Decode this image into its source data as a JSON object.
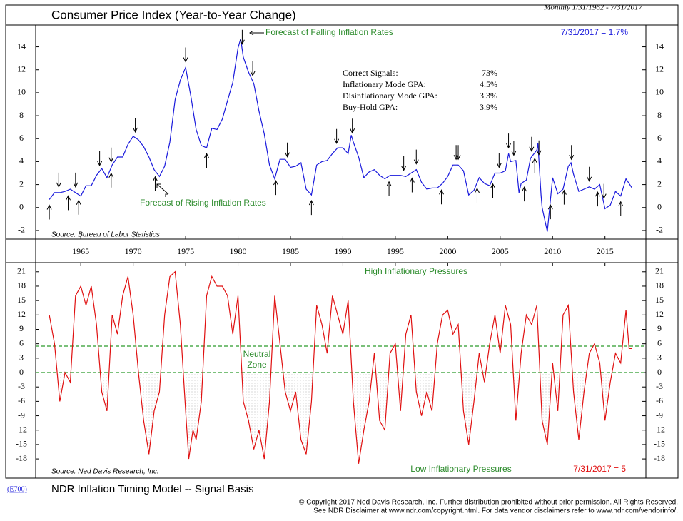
{
  "chart_data": [
    {
      "type": "line",
      "title": "Consumer Price Index (Year-to-Year Change)",
      "subtitle": "Monthly 1/31/1962 - 7/31/2017",
      "latest_label": "7/31/2017 = 1.7%",
      "source": "Source: Bureau of Labor Statistics",
      "annotations": [
        "Forecast of Falling Inflation Rates",
        "Forecast of Rising Inflation Rates"
      ],
      "stats": [
        {
          "label": "Correct Signals:",
          "value": "73%"
        },
        {
          "label": "Inflationary Mode GPA:",
          "value": "4.5%"
        },
        {
          "label": "Disinflationary Mode GPA:",
          "value": "3.3%"
        },
        {
          "label": "Buy-Hold GPA:",
          "value": "3.9%"
        }
      ],
      "color": "#1a1adc",
      "x": [
        1962,
        1962.5,
        1963,
        1963.5,
        1964,
        1964.5,
        1965,
        1965.5,
        1966,
        1966.5,
        1967,
        1967.5,
        1968,
        1968.5,
        1969,
        1969.5,
        1970,
        1970.5,
        1971,
        1971.5,
        1972,
        1972.5,
        1973,
        1973.5,
        1974,
        1974.5,
        1975,
        1975.5,
        1976,
        1976.5,
        1977,
        1977.5,
        1978,
        1978.5,
        1979,
        1979.5,
        1980,
        1980.25,
        1980.5,
        1981,
        1981.5,
        1982,
        1982.5,
        1983,
        1983.5,
        1984,
        1984.5,
        1985,
        1985.5,
        1986,
        1986.5,
        1987,
        1987.5,
        1988,
        1988.5,
        1989,
        1989.5,
        1990,
        1990.5,
        1990.8,
        1991,
        1991.5,
        1992,
        1992.5,
        1993,
        1993.5,
        1994,
        1994.5,
        1995,
        1995.5,
        1996,
        1996.5,
        1997,
        1997.5,
        1998,
        1998.5,
        1999,
        1999.5,
        2000,
        2000.5,
        2001,
        2001.5,
        2002,
        2002.5,
        2003,
        2003.5,
        2004,
        2004.5,
        2005,
        2005.5,
        2005.8,
        2006,
        2006.5,
        2006.8,
        2007,
        2007.5,
        2007.9,
        2008.5,
        2008.6,
        2008.9,
        2009,
        2009.5,
        2010,
        2010.5,
        2011,
        2011.5,
        2011.75,
        2012,
        2012.5,
        2013,
        2013.5,
        2014,
        2014.5,
        2015,
        2015.5,
        2016,
        2016.5,
        2017,
        2017.58
      ],
      "values": [
        0.7,
        1.3,
        1.3,
        1.4,
        1.6,
        1.3,
        1.0,
        1.9,
        1.9,
        2.8,
        3.4,
        2.6,
        3.7,
        4.4,
        4.4,
        5.5,
        6.2,
        5.9,
        5.3,
        4.4,
        3.3,
        2.7,
        3.6,
        5.7,
        9.4,
        11.1,
        12.2,
        9.7,
        6.8,
        5.4,
        5.2,
        6.9,
        6.8,
        7.7,
        9.3,
        10.9,
        13.9,
        14.7,
        13.1,
        11.8,
        10.8,
        8.4,
        6.4,
        3.7,
        2.5,
        4.2,
        4.2,
        3.5,
        3.6,
        3.9,
        1.6,
        1.1,
        3.7,
        4.0,
        4.1,
        4.7,
        5.2,
        5.2,
        4.7,
        6.3,
        5.7,
        4.4,
        2.6,
        3.1,
        3.3,
        2.8,
        2.5,
        2.8,
        2.8,
        2.8,
        2.7,
        3.0,
        3.3,
        2.2,
        1.6,
        1.7,
        1.7,
        2.1,
        2.7,
        3.7,
        3.7,
        3.2,
        1.1,
        1.5,
        2.6,
        2.1,
        1.9,
        3.0,
        3.0,
        3.2,
        4.7,
        4.0,
        4.1,
        1.3,
        2.1,
        2.4,
        4.3,
        5.0,
        5.6,
        1.1,
        0.0,
        -2.1,
        2.6,
        1.2,
        1.6,
        3.6,
        3.9,
        2.9,
        1.4,
        1.6,
        1.8,
        1.6,
        2.0,
        -0.1,
        0.2,
        1.4,
        1.0,
        2.5,
        1.7
      ],
      "down_signals": [
        1962.9,
        1964.5,
        1966.8,
        1967.9,
        1970.2,
        1975.0,
        1980.4,
        1981.4,
        1984.7,
        1989.4,
        1990.9,
        1995.8,
        1997.0,
        2000.8,
        2001.0,
        2004.9,
        2005.8,
        2006.3,
        2008.0,
        2008.7,
        2011.8,
        2013.5,
        2014.9
      ],
      "up_signals": [
        1962.0,
        1963.8,
        1964.8,
        1967.9,
        1972.1,
        1977.0,
        1983.6,
        1987.0,
        1994.4,
        1996.6,
        1999.4,
        2002.8,
        2004.3,
        2007.3,
        2008.3,
        2009.8,
        2011.1,
        2014.3,
        2016.5
      ],
      "xlim": [
        1960.7,
        2018.9
      ],
      "xticks": [
        1965,
        1970,
        1975,
        1980,
        1985,
        1990,
        1995,
        2000,
        2005,
        2010,
        2015
      ],
      "ylim": [
        -2.75,
        15.9
      ],
      "yticks": [
        -2,
        0,
        2,
        4,
        6,
        8,
        10,
        12,
        14
      ]
    },
    {
      "type": "line",
      "top_label": "High Inflationary Pressures",
      "bottom_label": "Low Inflationary Pressures",
      "zone_label": [
        "Neutral",
        "Zone"
      ],
      "latest_label": "7/31/2017 = 5",
      "source": "Source: Ned Davis Research, Inc.",
      "color": "#e01010",
      "zone_color": "#2a9a2a",
      "neutral_zone": [
        0,
        5.5
      ],
      "x": [
        1962,
        1962.5,
        1963,
        1963.5,
        1964,
        1964.5,
        1965,
        1965.5,
        1966,
        1966.5,
        1967,
        1967.5,
        1968,
        1968.5,
        1969,
        1969.5,
        1970,
        1970.5,
        1971,
        1971.5,
        1972,
        1972.5,
        1973,
        1973.5,
        1974,
        1974.5,
        1975,
        1975.3,
        1975.7,
        1976,
        1976.5,
        1977,
        1977.5,
        1978,
        1978.5,
        1979,
        1979.5,
        1980,
        1980.5,
        1981,
        1981.5,
        1982,
        1982.5,
        1983,
        1983.5,
        1984,
        1984.5,
        1985,
        1985.5,
        1986,
        1986.5,
        1987,
        1987.5,
        1988,
        1988.5,
        1989,
        1989.5,
        1990,
        1990.5,
        1991,
        1991.5,
        1992,
        1992.5,
        1993,
        1993.5,
        1994,
        1994.5,
        1995,
        1995.5,
        1996,
        1996.5,
        1997,
        1997.5,
        1998,
        1998.5,
        1999,
        1999.5,
        2000,
        2000.5,
        2001,
        2001.5,
        2002,
        2002.5,
        2003,
        2003.5,
        2004,
        2004.5,
        2005,
        2005.5,
        2006,
        2006.5,
        2007,
        2007.5,
        2008,
        2008.5,
        2009,
        2009.5,
        2010,
        2010.5,
        2011,
        2011.5,
        2012,
        2012.5,
        2013,
        2013.5,
        2014,
        2014.5,
        2015,
        2015.5,
        2016,
        2016.5,
        2017,
        2017.3,
        2017.58
      ],
      "values": [
        12,
        6,
        -6,
        0,
        -2,
        16,
        18,
        14,
        18,
        10,
        -4,
        -8,
        12,
        8,
        16,
        20,
        12,
        0,
        -10,
        -17,
        -8,
        -4,
        12,
        20,
        21,
        10,
        -8,
        -18,
        -12,
        -14,
        -6,
        16,
        20,
        18,
        18,
        16,
        8,
        16,
        -6,
        -10,
        -16,
        -12,
        -18,
        -6,
        16,
        6,
        -4,
        -8,
        -4,
        -14,
        -17,
        -6,
        14,
        10,
        4,
        16,
        12,
        8,
        15,
        -6,
        -19,
        -12,
        -6,
        4,
        -10,
        -12,
        4,
        6,
        -8,
        8,
        12,
        -4,
        -9,
        -4,
        -8,
        6,
        12,
        13,
        8,
        10,
        -8,
        -15,
        -6,
        4,
        -2,
        6,
        12,
        4,
        14,
        10,
        -10,
        4,
        12,
        10,
        14,
        -10,
        -15,
        2,
        -8,
        12,
        14,
        -4,
        -14,
        -4,
        4,
        6,
        2,
        -10,
        -2,
        4,
        2,
        13,
        5,
        5
      ],
      "xlim": [
        1960.7,
        2018.9
      ],
      "ylim": [
        -22,
        22.9
      ],
      "yticks": [
        -18,
        -15,
        -12,
        -9,
        -6,
        -3,
        0,
        3,
        6,
        9,
        12,
        15,
        18,
        21
      ]
    }
  ],
  "footer": {
    "code": "(E700)",
    "title": "NDR Inflation Timing Model -- Signal Basis",
    "copyright": "© Copyright 2017 Ned Davis Research, Inc.  Further distribution prohibited without prior permission.  All Rights Reserved.",
    "disclaimer": "See NDR Disclaimer at www.ndr.com/copyright.html.  For data vendor disclaimers refer to www.ndr.com/vendorinfo/."
  }
}
